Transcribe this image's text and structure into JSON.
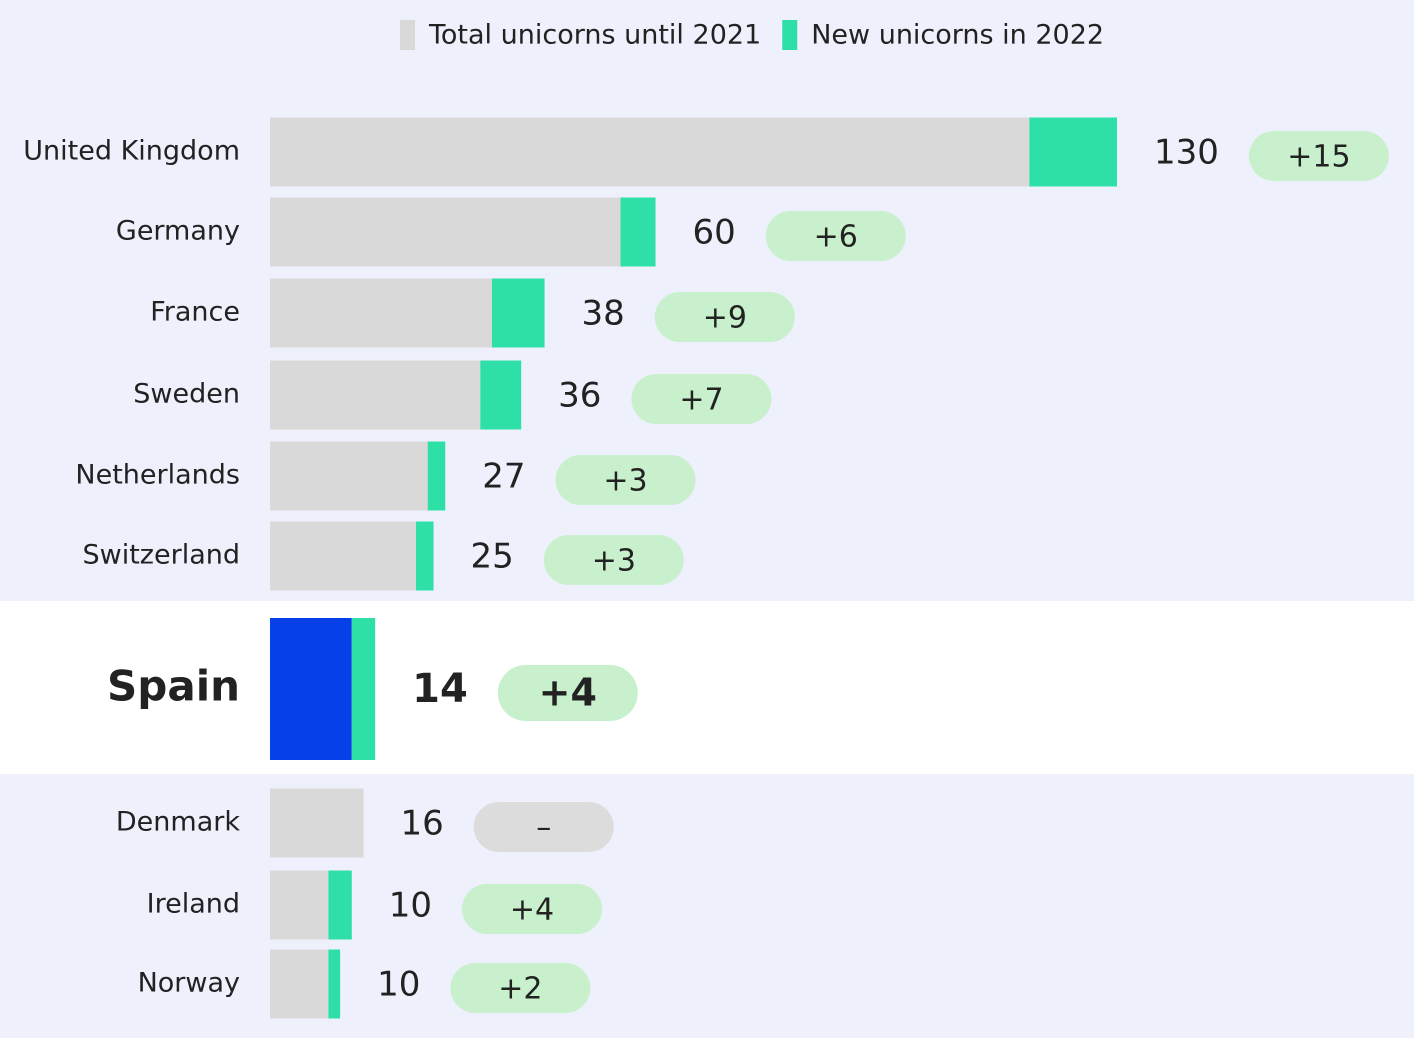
{
  "chart_data": {
    "type": "stacked-barh",
    "categories": [
      "United Kingdom",
      "Germany",
      "France",
      "Sweden",
      "Netherlands",
      "Switzerland",
      "Spain",
      "Denmark",
      "Ireland",
      "Norway"
    ],
    "series": [
      {
        "name": "Total unicorns until 2021",
        "color": "#d9d9d9",
        "values": [
          130,
          60,
          38,
          36,
          27,
          25,
          14,
          16,
          10,
          10
        ]
      },
      {
        "name": "New unicorns in 2022",
        "color": "#2ee0a8",
        "values": [
          15,
          6,
          9,
          7,
          3,
          3,
          4,
          null,
          4,
          2
        ],
        "value_labels": [
          "+15",
          "+6",
          "+9",
          "+7",
          "+3",
          "+3",
          "+4",
          "–",
          "+4",
          "+2"
        ]
      }
    ],
    "highlight_index": 6,
    "highlight_color": "#0540e8"
  }
}
